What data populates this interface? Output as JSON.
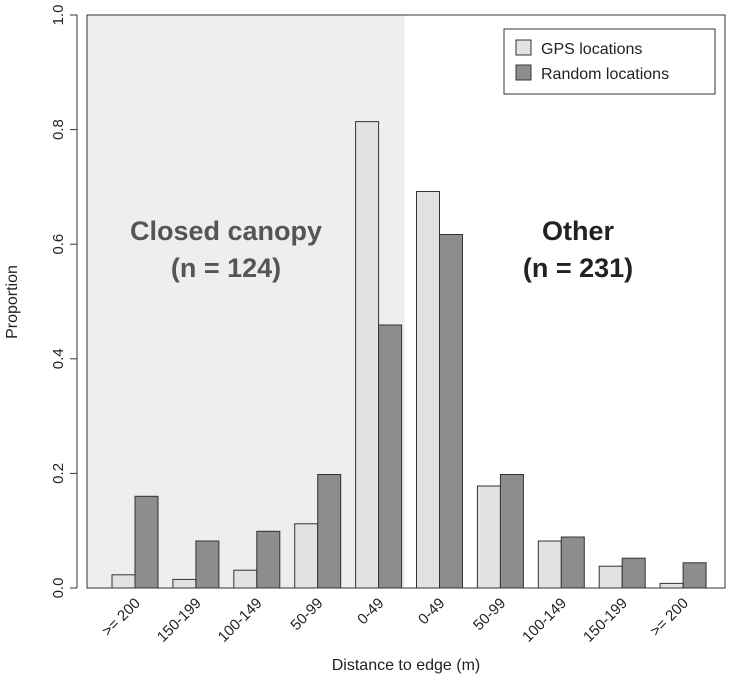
{
  "chart_data": {
    "type": "bar",
    "xlabel": "Distance to edge (m)",
    "ylabel": "Proportion",
    "ylim": [
      0,
      1
    ],
    "yticks": [
      "0.0",
      "0.2",
      "0.4",
      "0.6",
      "0.8",
      "1.0"
    ],
    "ytick_values": [
      0,
      0.2,
      0.4,
      0.6,
      0.8,
      1.0
    ],
    "categories": [
      ">= 200",
      "150-199",
      "100-149",
      "50-99",
      "0-49",
      "0-49",
      "50-99",
      "100-149",
      "150-199",
      ">= 200"
    ],
    "series": [
      {
        "name": "GPS locations",
        "color": "#e2e2e2",
        "values": [
          0.023,
          0.015,
          0.031,
          0.112,
          0.814,
          0.692,
          0.178,
          0.082,
          0.038,
          0.008
        ]
      },
      {
        "name": "Random locations",
        "color": "#8d8d8d",
        "values": [
          0.16,
          0.082,
          0.099,
          0.198,
          0.459,
          0.617,
          0.198,
          0.089,
          0.052,
          0.044
        ]
      }
    ],
    "regions": [
      {
        "label": "Closed canopy",
        "n_label": "(n = 124)",
        "categories_from": 0,
        "categories_to": 4,
        "shade": "#eeeeee"
      },
      {
        "label": "Other",
        "n_label": "(n = 231)",
        "categories_from": 5,
        "categories_to": 9,
        "shade": "#ffffff"
      }
    ],
    "legend": {
      "position": "top-right"
    },
    "grid": false
  }
}
